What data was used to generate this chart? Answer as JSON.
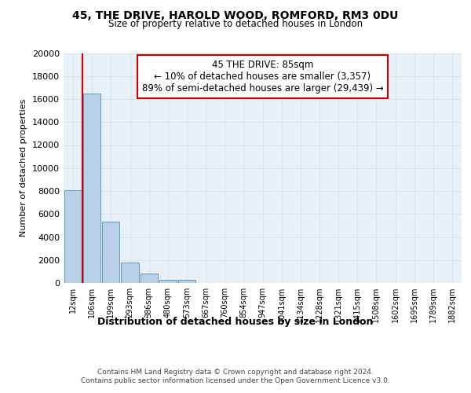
{
  "title_line1": "45, THE DRIVE, HAROLD WOOD, ROMFORD, RM3 0DU",
  "title_line2": "Size of property relative to detached houses in London",
  "xlabel": "Distribution of detached houses by size in London",
  "ylabel": "Number of detached properties",
  "footer_line1": "Contains HM Land Registry data © Crown copyright and database right 2024.",
  "footer_line2": "Contains public sector information licensed under the Open Government Licence v3.0.",
  "annotation_line1": "45 THE DRIVE: 85sqm",
  "annotation_line2": "← 10% of detached houses are smaller (3,357)",
  "annotation_line3": "89% of semi-detached houses are larger (29,439) →",
  "bar_categories": [
    "12sqm",
    "106sqm",
    "199sqm",
    "293sqm",
    "386sqm",
    "480sqm",
    "573sqm",
    "667sqm",
    "760sqm",
    "854sqm",
    "947sqm",
    "1041sqm",
    "1134sqm",
    "1228sqm",
    "1321sqm",
    "1415sqm",
    "1508sqm",
    "1602sqm",
    "1695sqm",
    "1789sqm",
    "1882sqm"
  ],
  "bar_values": [
    8100,
    16500,
    5300,
    1800,
    800,
    300,
    250,
    0,
    0,
    0,
    0,
    0,
    0,
    0,
    0,
    0,
    0,
    0,
    0,
    0,
    0
  ],
  "bar_color": "#b8d0e8",
  "bar_edge_color": "#6699bb",
  "redline_color": "#cc0000",
  "annotation_box_edge": "#cc0000",
  "grid_color": "#d8e4f0",
  "background_color": "#e8f0f8",
  "ylim": [
    0,
    20000
  ],
  "yticks": [
    0,
    2000,
    4000,
    6000,
    8000,
    10000,
    12000,
    14000,
    16000,
    18000,
    20000
  ],
  "redline_x": 0.5
}
